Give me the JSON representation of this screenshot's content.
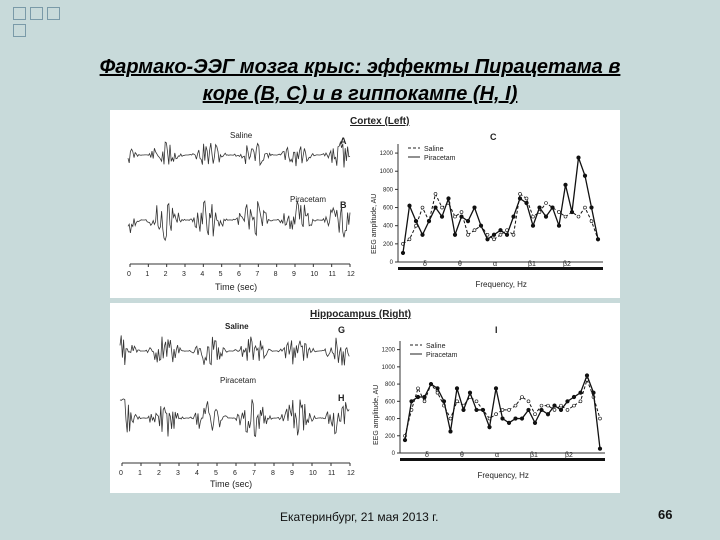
{
  "slide": {
    "title_line1": "Фармако-ЭЭГ мозга крыс: эффекты Пирацетама в",
    "title_line2": "коре (B, C) и в гиппокампе (H, I)",
    "footer": "Екатеринбург, 21 мая 2013 г.",
    "page_number": "66"
  },
  "figure": {
    "top": {
      "heading": "Cortex (Left)",
      "trace1_label": "Saline",
      "trace1_letter": "A",
      "trace2_label": "Piracetam",
      "trace2_letter": "B",
      "spectrum_letter": "C",
      "time_ticks": [
        "0",
        "1",
        "2",
        "3",
        "4",
        "5",
        "6",
        "7",
        "8",
        "9",
        "10",
        "11",
        "12"
      ],
      "time_label": "Time (sec)",
      "ylabel": "EEG amplitude, AU",
      "yticks": [
        "0",
        "200",
        "400",
        "600",
        "800",
        "1000",
        "1200"
      ],
      "xlabel": "Frequency, Hz",
      "legend": [
        "Saline",
        "Piracetam"
      ],
      "bands": [
        "δ",
        "θ",
        "α",
        "β1",
        "β2"
      ]
    },
    "bottom": {
      "heading": "Hippocampus (Right)",
      "trace1_label": "Saline",
      "trace1_letter": "G",
      "trace2_label": "Piracetam",
      "trace2_letter": "H",
      "spectrum_letter": "I",
      "time_ticks": [
        "0",
        "1",
        "2",
        "3",
        "4",
        "5",
        "6",
        "7",
        "8",
        "9",
        "10",
        "11",
        "12"
      ],
      "time_label": "Time (sec)",
      "ylabel": "EEG amplitude, AU",
      "yticks": [
        "0",
        "200",
        "400",
        "600",
        "800",
        "1000",
        "1200"
      ],
      "xlabel": "Frequency, Hz",
      "legend": [
        "Saline",
        "Piracetam"
      ],
      "bands": [
        "δ",
        "θ",
        "α",
        "β1",
        "β2"
      ]
    }
  },
  "chart_data": [
    {
      "type": "line",
      "ylim": [
        0,
        1300
      ],
      "series": [
        {
          "name": "Saline",
          "values": [
            200,
            250,
            400,
            600,
            450,
            750,
            600,
            650,
            500,
            550,
            300,
            350,
            400,
            300,
            250,
            300,
            350,
            300,
            750,
            700,
            500,
            550,
            650,
            600,
            550,
            500,
            550,
            500,
            600,
            450,
            250
          ]
        },
        {
          "name": "Piracetam",
          "values": [
            100,
            620,
            450,
            300,
            450,
            600,
            500,
            700,
            300,
            500,
            450,
            600,
            400,
            250,
            300,
            350,
            300,
            500,
            700,
            650,
            400,
            600,
            500,
            600,
            400,
            850,
            550,
            1150,
            950,
            600,
            250
          ]
        }
      ]
    },
    {
      "type": "line",
      "ylim": [
        0,
        1300
      ],
      "series": [
        {
          "name": "Saline",
          "values": [
            200,
            500,
            750,
            600,
            800,
            700,
            550,
            400,
            600,
            550,
            650,
            600,
            500,
            400,
            450,
            500,
            500,
            550,
            650,
            600,
            450,
            550,
            550,
            500,
            550,
            500,
            550,
            600,
            850,
            650,
            400
          ]
        },
        {
          "name": "Piracetam",
          "values": [
            150,
            600,
            650,
            650,
            800,
            750,
            600,
            250,
            750,
            500,
            700,
            500,
            500,
            300,
            750,
            400,
            350,
            400,
            400,
            500,
            350,
            500,
            450,
            550,
            500,
            600,
            650,
            700,
            900,
            700,
            50
          ]
        }
      ]
    }
  ]
}
